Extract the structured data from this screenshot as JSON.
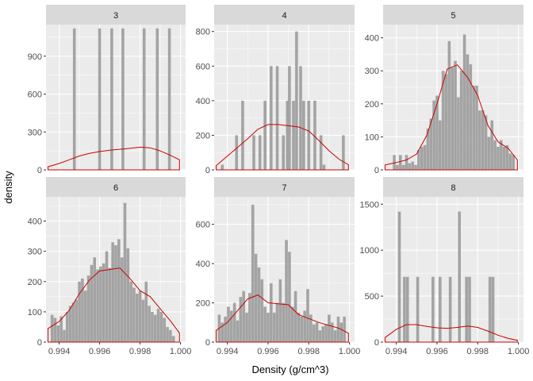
{
  "chart_data": {
    "type": "histogram-facet",
    "xlabel": "Density (g/cm^3)",
    "ylabel": "density",
    "facet_by": "quality",
    "x_ticks": [
      "0.994",
      "0.996",
      "0.998",
      "1.000"
    ],
    "x_tick_values": [
      0.994,
      0.996,
      0.998,
      1.0
    ],
    "xlim": [
      0.99335,
      1.00025
    ],
    "colors": {
      "bars": "#a3a3a3",
      "curve": "#cc0000",
      "panel_bg": "#ebebeb",
      "strip_bg": "#d9d9d9",
      "grid": "#ffffff"
    },
    "bin_width": 0.00014,
    "panels": [
      {
        "label": "3",
        "ylim": [
          0,
          1150
        ],
        "y_ticks": [
          "0",
          "300",
          "600",
          "900"
        ],
        "y_tick_values": [
          0,
          300,
          600,
          900
        ],
        "bars": [
          [
            0.99475,
            1120
          ],
          [
            0.996,
            1120
          ],
          [
            0.9966,
            1120
          ],
          [
            0.99715,
            1120
          ],
          [
            0.9982,
            1120
          ],
          [
            0.99885,
            1120
          ],
          [
            0.99945,
            1120
          ]
        ],
        "curve": [
          [
            0.99345,
            25
          ],
          [
            0.994,
            50
          ],
          [
            0.9945,
            80
          ],
          [
            0.995,
            110
          ],
          [
            0.9955,
            130
          ],
          [
            0.996,
            145
          ],
          [
            0.9965,
            155
          ],
          [
            0.997,
            163
          ],
          [
            0.9975,
            170
          ],
          [
            0.998,
            180
          ],
          [
            0.9985,
            175
          ],
          [
            0.999,
            150
          ],
          [
            0.9995,
            115
          ],
          [
            0.99995,
            80
          ]
        ]
      },
      {
        "label": "4",
        "ylim": [
          0,
          840
        ],
        "y_ticks": [
          "0",
          "200",
          "400",
          "600",
          "800"
        ],
        "y_tick_values": [
          0,
          200,
          400,
          600,
          800
        ],
        "bars": [
          [
            0.99375,
            30
          ],
          [
            0.99445,
            200
          ],
          [
            0.99475,
            400
          ],
          [
            0.9953,
            200
          ],
          [
            0.9956,
            200
          ],
          [
            0.99585,
            400
          ],
          [
            0.99615,
            600
          ],
          [
            0.99645,
            600
          ],
          [
            0.99675,
            200
          ],
          [
            0.99695,
            400
          ],
          [
            0.99705,
            600
          ],
          [
            0.99725,
            400
          ],
          [
            0.9974,
            800
          ],
          [
            0.9976,
            600
          ],
          [
            0.99775,
            400
          ],
          [
            0.998,
            400
          ],
          [
            0.9983,
            400
          ],
          [
            0.9986,
            200
          ],
          [
            0.99875,
            30
          ],
          [
            0.9997,
            200
          ]
        ],
        "curve": [
          [
            0.99345,
            25
          ],
          [
            0.994,
            80
          ],
          [
            0.9945,
            130
          ],
          [
            0.995,
            180
          ],
          [
            0.9955,
            235
          ],
          [
            0.996,
            262
          ],
          [
            0.9965,
            262
          ],
          [
            0.997,
            255
          ],
          [
            0.9975,
            248
          ],
          [
            0.998,
            225
          ],
          [
            0.9985,
            170
          ],
          [
            0.999,
            110
          ],
          [
            0.9995,
            60
          ],
          [
            0.99995,
            30
          ]
        ]
      },
      {
        "label": "5",
        "ylim": [
          0,
          440
        ],
        "y_ticks": [
          "0",
          "100",
          "200",
          "300",
          "400"
        ],
        "y_tick_values": [
          0,
          100,
          200,
          300,
          400
        ],
        "bars": [
          [
            0.9939,
            45
          ],
          [
            0.99405,
            15
          ],
          [
            0.9942,
            45
          ],
          [
            0.99435,
            15
          ],
          [
            0.9945,
            45
          ],
          [
            0.99465,
            20
          ],
          [
            0.9948,
            25
          ],
          [
            0.99495,
            15
          ],
          [
            0.9951,
            60
          ],
          [
            0.99525,
            70
          ],
          [
            0.9954,
            75
          ],
          [
            0.99555,
            125
          ],
          [
            0.9957,
            155
          ],
          [
            0.99585,
            210
          ],
          [
            0.996,
            225
          ],
          [
            0.99615,
            150
          ],
          [
            0.9963,
            300
          ],
          [
            0.99645,
            290
          ],
          [
            0.9966,
            390
          ],
          [
            0.99675,
            310
          ],
          [
            0.9969,
            330
          ],
          [
            0.99705,
            220
          ],
          [
            0.9972,
            300
          ],
          [
            0.99735,
            410
          ],
          [
            0.9975,
            350
          ],
          [
            0.99765,
            320
          ],
          [
            0.9978,
            255
          ],
          [
            0.99795,
            255
          ],
          [
            0.9981,
            180
          ],
          [
            0.99825,
            180
          ],
          [
            0.9984,
            165
          ],
          [
            0.99855,
            100
          ],
          [
            0.9987,
            150
          ],
          [
            0.99885,
            90
          ],
          [
            0.999,
            70
          ],
          [
            0.99915,
            90
          ],
          [
            0.9993,
            70
          ],
          [
            0.99945,
            75
          ],
          [
            0.9996,
            50
          ],
          [
            0.99975,
            45
          ]
        ],
        "curve": [
          [
            0.99345,
            15
          ],
          [
            0.994,
            22
          ],
          [
            0.9945,
            30
          ],
          [
            0.995,
            48
          ],
          [
            0.9955,
            105
          ],
          [
            0.996,
            200
          ],
          [
            0.9965,
            305
          ],
          [
            0.997,
            318
          ],
          [
            0.9975,
            280
          ],
          [
            0.998,
            225
          ],
          [
            0.9985,
            135
          ],
          [
            0.999,
            85
          ],
          [
            0.9995,
            65
          ],
          [
            0.99995,
            30
          ]
        ]
      },
      {
        "label": "6",
        "ylim": [
          0,
          480
        ],
        "y_ticks": [
          "0",
          "100",
          "200",
          "300",
          "400"
        ],
        "y_tick_values": [
          0,
          100,
          200,
          300,
          400
        ],
        "bars": [
          [
            0.99365,
            90
          ],
          [
            0.9938,
            80
          ],
          [
            0.99395,
            55
          ],
          [
            0.9941,
            85
          ],
          [
            0.99425,
            40
          ],
          [
            0.9944,
            100
          ],
          [
            0.99455,
            120
          ],
          [
            0.9947,
            130
          ],
          [
            0.99485,
            140
          ],
          [
            0.995,
            200
          ],
          [
            0.99515,
            210
          ],
          [
            0.9953,
            170
          ],
          [
            0.99545,
            220
          ],
          [
            0.9956,
            255
          ],
          [
            0.99575,
            280
          ],
          [
            0.9959,
            240
          ],
          [
            0.99605,
            250
          ],
          [
            0.9962,
            260
          ],
          [
            0.99635,
            300
          ],
          [
            0.9965,
            245
          ],
          [
            0.99665,
            330
          ],
          [
            0.9968,
            320
          ],
          [
            0.99695,
            340
          ],
          [
            0.9971,
            280
          ],
          [
            0.99725,
            460
          ],
          [
            0.9974,
            310
          ],
          [
            0.99755,
            200
          ],
          [
            0.9977,
            180
          ],
          [
            0.99785,
            160
          ],
          [
            0.998,
            170
          ],
          [
            0.99815,
            140
          ],
          [
            0.9983,
            200
          ],
          [
            0.99845,
            120
          ],
          [
            0.9986,
            100
          ],
          [
            0.99875,
            90
          ],
          [
            0.9989,
            110
          ],
          [
            0.99905,
            100
          ],
          [
            0.9992,
            80
          ],
          [
            0.99935,
            50
          ],
          [
            0.9995,
            40
          ],
          [
            0.99965,
            20
          ]
        ],
        "curve": [
          [
            0.99345,
            45
          ],
          [
            0.994,
            68
          ],
          [
            0.9945,
            105
          ],
          [
            0.995,
            160
          ],
          [
            0.9955,
            205
          ],
          [
            0.996,
            235
          ],
          [
            0.9965,
            240
          ],
          [
            0.997,
            245
          ],
          [
            0.9975,
            210
          ],
          [
            0.998,
            170
          ],
          [
            0.9985,
            150
          ],
          [
            0.999,
            110
          ],
          [
            0.9995,
            70
          ],
          [
            0.99995,
            30
          ]
        ]
      },
      {
        "label": "7",
        "ylim": [
          0,
          740
        ],
        "y_ticks": [
          "0",
          "200",
          "400",
          "600"
        ],
        "y_tick_values": [
          0,
          200,
          400,
          600
        ],
        "bars": [
          [
            0.9936,
            140
          ],
          [
            0.99375,
            100
          ],
          [
            0.9939,
            130
          ],
          [
            0.99405,
            180
          ],
          [
            0.9942,
            160
          ],
          [
            0.99435,
            200
          ],
          [
            0.9945,
            110
          ],
          [
            0.99465,
            230
          ],
          [
            0.9948,
            260
          ],
          [
            0.99495,
            150
          ],
          [
            0.9951,
            250
          ],
          [
            0.99525,
            700
          ],
          [
            0.9954,
            450
          ],
          [
            0.99555,
            380
          ],
          [
            0.9957,
            320
          ],
          [
            0.99585,
            180
          ],
          [
            0.996,
            150
          ],
          [
            0.99615,
            300
          ],
          [
            0.9963,
            150
          ],
          [
            0.99645,
            200
          ],
          [
            0.9966,
            320
          ],
          [
            0.99675,
            200
          ],
          [
            0.9969,
            520
          ],
          [
            0.99705,
            460
          ],
          [
            0.9972,
            180
          ],
          [
            0.99735,
            260
          ],
          [
            0.9975,
            150
          ],
          [
            0.99765,
            130
          ],
          [
            0.9978,
            160
          ],
          [
            0.99795,
            270
          ],
          [
            0.9981,
            140
          ],
          [
            0.99825,
            90
          ],
          [
            0.9984,
            100
          ],
          [
            0.99855,
            60
          ],
          [
            0.9987,
            80
          ],
          [
            0.99885,
            90
          ],
          [
            0.999,
            140
          ],
          [
            0.99915,
            100
          ],
          [
            0.9993,
            60
          ],
          [
            0.99945,
            130
          ],
          [
            0.9996,
            100
          ],
          [
            0.99975,
            130
          ]
        ],
        "curve": [
          [
            0.99345,
            60
          ],
          [
            0.994,
            100
          ],
          [
            0.9945,
            160
          ],
          [
            0.995,
            220
          ],
          [
            0.9955,
            240
          ],
          [
            0.996,
            200
          ],
          [
            0.9965,
            195
          ],
          [
            0.997,
            190
          ],
          [
            0.9975,
            140
          ],
          [
            0.998,
            120
          ],
          [
            0.9985,
            100
          ],
          [
            0.999,
            85
          ],
          [
            0.9995,
            70
          ],
          [
            0.99995,
            45
          ]
        ]
      },
      {
        "label": "8",
        "ylim": [
          0,
          1580
        ],
        "y_ticks": [
          "0",
          "500",
          "1000",
          "1500"
        ],
        "y_tick_values": [
          0,
          500,
          1000,
          1500
        ],
        "bars": [
          [
            0.99415,
            1420
          ],
          [
            0.9944,
            710
          ],
          [
            0.99455,
            710
          ],
          [
            0.99505,
            710
          ],
          [
            0.9958,
            710
          ],
          [
            0.99615,
            710
          ],
          [
            0.99665,
            710
          ],
          [
            0.9971,
            1420
          ],
          [
            0.99745,
            710
          ],
          [
            0.9976,
            710
          ],
          [
            0.9986,
            710
          ],
          [
            0.99875,
            710
          ]
        ],
        "curve": [
          [
            0.99345,
            50
          ],
          [
            0.994,
            140
          ],
          [
            0.9945,
            190
          ],
          [
            0.995,
            190
          ],
          [
            0.9955,
            170
          ],
          [
            0.996,
            155
          ],
          [
            0.9965,
            150
          ],
          [
            0.997,
            160
          ],
          [
            0.9975,
            175
          ],
          [
            0.998,
            160
          ],
          [
            0.9985,
            120
          ],
          [
            0.999,
            75
          ],
          [
            0.9995,
            40
          ],
          [
            0.99995,
            20
          ]
        ]
      }
    ]
  }
}
